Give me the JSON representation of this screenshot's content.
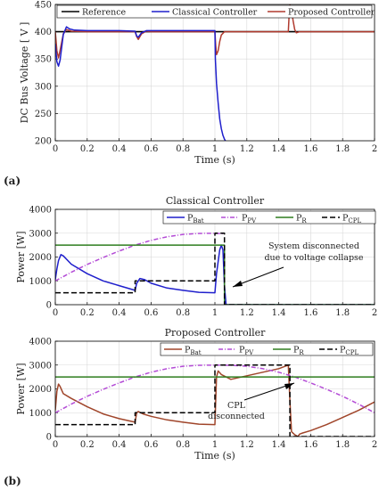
{
  "colors": {
    "reference": "#000000",
    "classical": "#1f1fcc",
    "proposed": "#b03a2e",
    "bat_classical": "#1f1fcc",
    "bat_proposed": "#a0452a",
    "pv": "#b44cd6",
    "r": "#2e7d1e",
    "cpl": "#000000",
    "grid": "#d8d8d8"
  },
  "panel_labels": {
    "a": "(a)",
    "b": "(b)"
  },
  "chart_data": [
    {
      "type": "line",
      "title": "",
      "xlabel": "Time (s)",
      "ylabel": "DC Bus Voltage [ V ]",
      "xlim": [
        0,
        2
      ],
      "ylim": [
        200,
        450
      ],
      "xticks": [
        "0",
        "0.2",
        "0.4",
        "0.6",
        "0.8",
        "1",
        "1.2",
        "1.4",
        "1.6",
        "1.8",
        "2"
      ],
      "yticks": [
        "200",
        "250",
        "300",
        "350",
        "400",
        "450"
      ],
      "grid": true,
      "legend_position": "top",
      "series": [
        {
          "name": "Reference",
          "key": "reference",
          "x": [
            0,
            2
          ],
          "y": [
            400,
            400
          ]
        },
        {
          "name": "Classical Controller",
          "key": "classical",
          "x": [
            0,
            0.01,
            0.02,
            0.03,
            0.05,
            0.07,
            0.09,
            0.12,
            0.2,
            0.3,
            0.4,
            0.5,
            0.51,
            0.52,
            0.54,
            0.57,
            0.6,
            0.8,
            1.0,
            1.003,
            1.01,
            1.02,
            1.03,
            1.04,
            1.05,
            1.06,
            1.07
          ],
          "y": [
            378,
            345,
            337,
            348,
            395,
            409,
            405,
            403,
            402,
            402,
            402,
            401,
            392,
            390,
            398,
            402,
            402,
            402,
            402,
            350,
            305,
            270,
            240,
            222,
            210,
            203,
            198
          ]
        },
        {
          "name": "Proposed Controller",
          "key": "proposed",
          "x": [
            0,
            0.01,
            0.02,
            0.03,
            0.05,
            0.07,
            0.1,
            0.2,
            0.5,
            0.51,
            0.52,
            0.54,
            0.57,
            0.6,
            1.0,
            1.005,
            1.01,
            1.02,
            1.03,
            1.04,
            1.06,
            1.1,
            1.3,
            1.46,
            1.465,
            1.47,
            1.48,
            1.49,
            1.5,
            1.51,
            1.53,
            1.6,
            2.0
          ],
          "y": [
            400,
            365,
            352,
            366,
            396,
            404,
            401,
            400,
            400,
            391,
            386,
            396,
            401,
            400,
            400,
            375,
            358,
            365,
            382,
            394,
            400,
            400,
            400,
            400,
            430,
            449,
            440,
            420,
            404,
            398,
            400,
            400,
            400
          ]
        }
      ]
    },
    {
      "type": "line",
      "title": "Classical Controller",
      "xlabel": "",
      "ylabel": "Power [W]",
      "xlim": [
        0,
        2
      ],
      "ylim": [
        0,
        4000
      ],
      "xticks": [
        "0",
        "0.2",
        "0.4",
        "0.6",
        "0.8",
        "1",
        "1.2",
        "1.4",
        "1.6",
        "1.8",
        "2"
      ],
      "yticks": [
        "0",
        "1000",
        "2000",
        "3000",
        "4000"
      ],
      "grid": true,
      "legend_position": "top-right",
      "annotation": [
        "System disconnected",
        "due to voltage collapse"
      ],
      "series": [
        {
          "name": "P",
          "sub": "Bat",
          "key": "bat_classical",
          "dash": "",
          "x": [
            0,
            0.01,
            0.02,
            0.035,
            0.05,
            0.1,
            0.2,
            0.3,
            0.4,
            0.5,
            0.51,
            0.53,
            0.56,
            0.6,
            0.7,
            0.8,
            0.9,
            1.0,
            1.01,
            1.03,
            1.04,
            1.05,
            1.06,
            1.07,
            1.08,
            2.0
          ],
          "y": [
            1050,
            1500,
            1850,
            2100,
            2050,
            1700,
            1300,
            1000,
            800,
            600,
            900,
            1100,
            1050,
            900,
            700,
            600,
            520,
            500,
            1300,
            2300,
            2500,
            2300,
            800,
            0,
            0,
            0
          ]
        },
        {
          "name": "P",
          "sub": "PV",
          "key": "pv",
          "dash": "5,2,1,2",
          "x": [
            0,
            0.1,
            0.2,
            0.3,
            0.4,
            0.5,
            0.6,
            0.7,
            0.8,
            0.9,
            1.0,
            1.06
          ],
          "y": [
            1000,
            1360,
            1690,
            1980,
            2250,
            2500,
            2700,
            2850,
            2950,
            2990,
            3000,
            2980
          ]
        },
        {
          "name": "P",
          "sub": "R",
          "key": "r",
          "dash": "",
          "x": [
            0,
            1.06,
            1.06,
            2.0
          ],
          "y": [
            2500,
            2500,
            0,
            0
          ]
        },
        {
          "name": "P",
          "sub": "CPL",
          "key": "cpl",
          "dash": "6,3",
          "x": [
            0,
            0.5,
            0.5,
            1.0,
            1.0,
            1.06,
            1.06,
            2.0
          ],
          "y": [
            500,
            500,
            1000,
            1000,
            3000,
            3000,
            0,
            0
          ]
        }
      ]
    },
    {
      "type": "line",
      "title": "Proposed Controller",
      "xlabel": "Time (s)",
      "ylabel": "Power [W]",
      "xlim": [
        0,
        2
      ],
      "ylim": [
        0,
        4000
      ],
      "xticks": [
        "0",
        "0.2",
        "0.4",
        "0.6",
        "0.8",
        "1",
        "1.2",
        "1.4",
        "1.6",
        "1.8",
        "2"
      ],
      "yticks": [
        "0",
        "1000",
        "2000",
        "3000",
        "4000"
      ],
      "grid": true,
      "legend_position": "top",
      "annotation": [
        "CPL",
        "disconnected"
      ],
      "series": [
        {
          "name": "P",
          "sub": "Bat",
          "key": "bat_proposed",
          "dash": "",
          "x": [
            0,
            0.01,
            0.02,
            0.03,
            0.05,
            0.1,
            0.2,
            0.3,
            0.4,
            0.5,
            0.51,
            0.52,
            0.55,
            0.6,
            0.7,
            0.8,
            0.9,
            1.0,
            1.01,
            1.02,
            1.04,
            1.1,
            1.2,
            1.3,
            1.4,
            1.46,
            1.47,
            1.48,
            1.5,
            1.52,
            1.53,
            1.55,
            1.6,
            1.7,
            1.8,
            1.9,
            2.0
          ],
          "y": [
            1100,
            1900,
            2200,
            2100,
            1800,
            1600,
            1250,
            950,
            750,
            600,
            1000,
            1050,
            950,
            850,
            700,
            600,
            520,
            500,
            2500,
            2750,
            2600,
            2400,
            2550,
            2700,
            2850,
            3000,
            1500,
            200,
            80,
            0,
            100,
            150,
            250,
            500,
            800,
            1100,
            1450
          ]
        },
        {
          "name": "P",
          "sub": "PV",
          "key": "pv",
          "dash": "5,2,1,2",
          "x": [
            0,
            0.1,
            0.2,
            0.3,
            0.4,
            0.5,
            0.6,
            0.7,
            0.8,
            0.9,
            1.0,
            1.1,
            1.2,
            1.3,
            1.4,
            1.5,
            1.6,
            1.7,
            1.8,
            1.9,
            2.0
          ],
          "y": [
            1000,
            1360,
            1690,
            1980,
            2250,
            2500,
            2700,
            2850,
            2950,
            2990,
            3000,
            2990,
            2950,
            2850,
            2700,
            2500,
            2250,
            1980,
            1690,
            1360,
            1000
          ]
        },
        {
          "name": "P",
          "sub": "R",
          "key": "r",
          "dash": "",
          "x": [
            0,
            2
          ],
          "y": [
            2500,
            2500
          ]
        },
        {
          "name": "P",
          "sub": "CPL",
          "key": "cpl",
          "dash": "6,3",
          "x": [
            0,
            0.5,
            0.5,
            1.0,
            1.0,
            1.47,
            1.47,
            2.0
          ],
          "y": [
            500,
            500,
            1000,
            1000,
            3000,
            3000,
            0,
            0
          ]
        }
      ]
    }
  ]
}
